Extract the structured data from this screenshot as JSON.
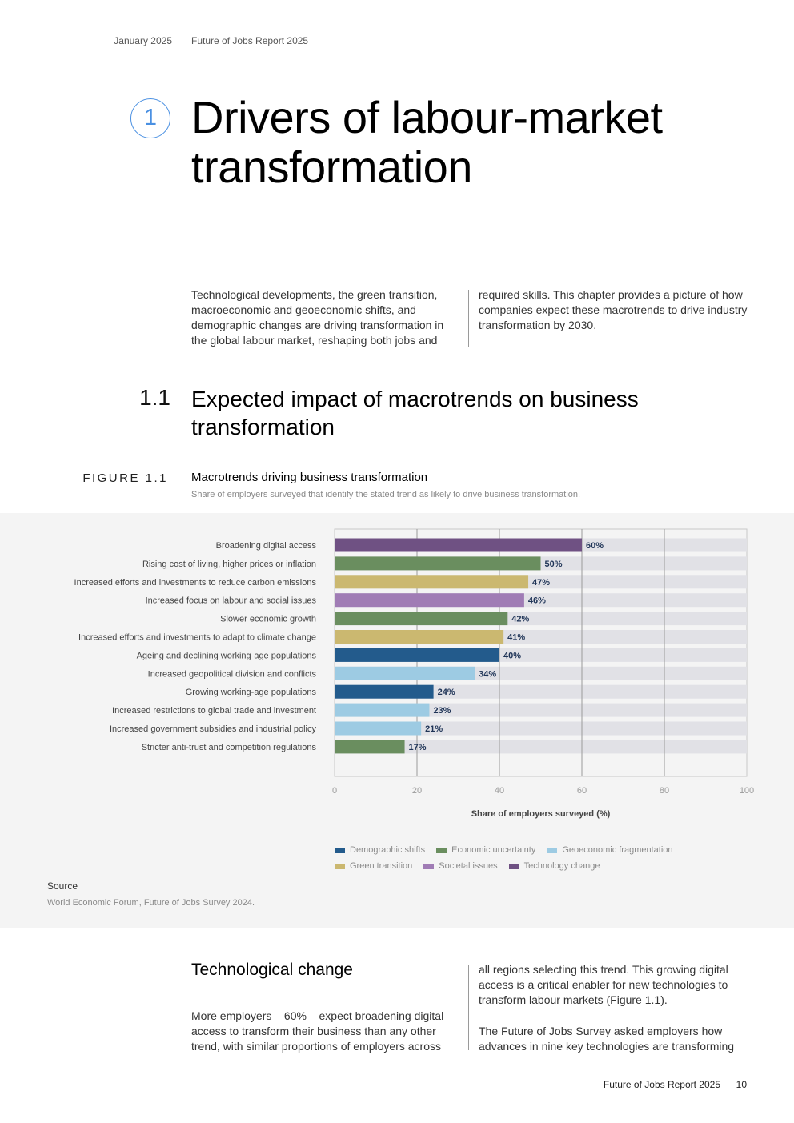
{
  "header": {
    "date": "January 2025",
    "report_title": "Future of Jobs Report 2025"
  },
  "chapter": {
    "number": "1",
    "title": "Drivers of labour-market transformation",
    "intro_left": "Technological developments, the green transition, macroeconomic and geoeconomic shifts, and demographic changes are driving transformation in the global labour market, reshaping both jobs and",
    "intro_right": "required skills. This chapter provides a picture of how companies expect these macrotrends to drive industry transformation by 2030."
  },
  "section": {
    "number": "1.1",
    "title": "Expected impact of macrotrends on business transformation"
  },
  "figure": {
    "label": "FIGURE 1.1",
    "title": "Macrotrends driving business transformation",
    "subtitle": "Share of employers surveyed that identify the stated trend as likely to drive business transformation.",
    "source_heading": "Source",
    "source_text": "World Economic Forum, Future of Jobs Survey 2024."
  },
  "colors": {
    "Demographic shifts": "#235b8c",
    "Economic uncertainty": "#6a8e5f",
    "Geoeconomic fragmentation": "#9dcbe3",
    "Green transition": "#cbb870",
    "Societal issues": "#a07cb5",
    "Technology change": "#6f5183",
    "track": "#e1e1e6",
    "value_label": "#1f3457"
  },
  "chart_data": {
    "type": "bar",
    "orientation": "horizontal",
    "xlabel": "Share of employers surveyed (%)",
    "xlim": [
      0,
      100
    ],
    "xticks": [
      0,
      20,
      40,
      60,
      80,
      100
    ],
    "grid": true,
    "legend_position": "bottom",
    "categories": [
      "Broadening digital access",
      "Rising cost of living, higher prices or inflation",
      "Increased efforts and investments to reduce carbon emissions",
      "Increased focus on labour and social issues",
      "Slower economic growth",
      "Increased efforts and investments to adapt to climate change",
      "Ageing and declining working-age populations",
      "Increased geopolitical division and conflicts",
      "Growing working-age populations",
      "Increased restrictions to global trade and investment",
      "Increased government subsidies and industrial policy",
      "Stricter anti-trust and competition regulations"
    ],
    "values": [
      60,
      50,
      47,
      46,
      42,
      41,
      40,
      34,
      24,
      23,
      21,
      17
    ],
    "value_labels": [
      "60%",
      "50%",
      "47%",
      "46%",
      "42%",
      "41%",
      "40%",
      "34%",
      "24%",
      "23%",
      "21%",
      "17%"
    ],
    "groups": [
      "Technology change",
      "Economic uncertainty",
      "Green transition",
      "Societal issues",
      "Economic uncertainty",
      "Green transition",
      "Demographic shifts",
      "Geoeconomic fragmentation",
      "Demographic shifts",
      "Geoeconomic fragmentation",
      "Geoeconomic fragmentation",
      "Economic uncertainty"
    ],
    "legend": [
      "Demographic shifts",
      "Economic uncertainty",
      "Geoeconomic fragmentation",
      "Green transition",
      "Societal issues",
      "Technology change"
    ]
  },
  "subsection": {
    "title": "Technological change",
    "body_left": "More employers – 60% – expect broadening digital access to transform their business than any other trend, with similar proportions of employers across",
    "body_right_1": "all regions selecting this trend. This growing digital access is a critical enabler for new technologies to transform labour markets (Figure 1.1).",
    "body_right_2": "The Future of Jobs Survey asked employers how advances in nine key technologies are transforming"
  },
  "footer": {
    "report_title": "Future of Jobs Report 2025",
    "page_number": "10"
  }
}
